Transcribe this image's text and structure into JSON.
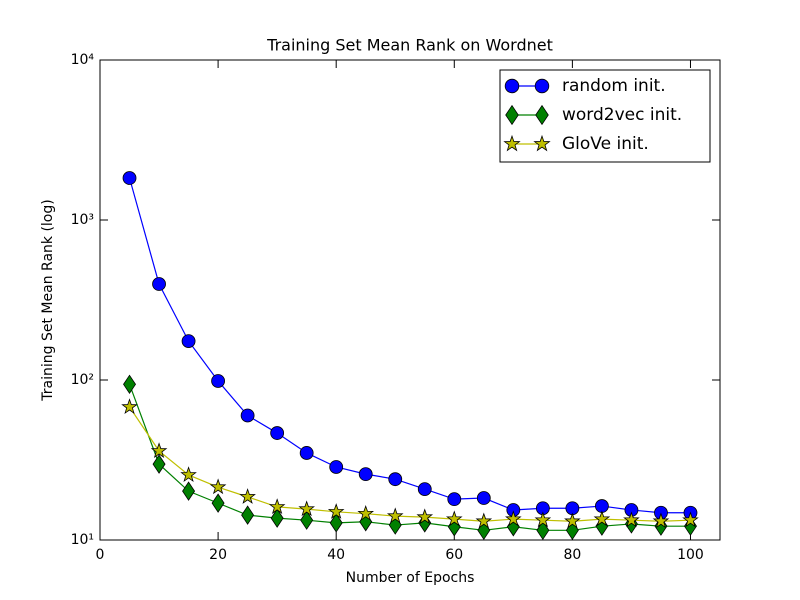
{
  "chart_data": {
    "type": "line",
    "title": "Training Set Mean Rank on Wordnet",
    "xlabel": "Number of Epochs",
    "ylabel": "Training Set Mean Rank (log)",
    "x": [
      5,
      10,
      15,
      20,
      25,
      30,
      35,
      40,
      45,
      50,
      55,
      60,
      65,
      70,
      75,
      80,
      85,
      90,
      95,
      100
    ],
    "series": [
      {
        "name": "random init.",
        "color": "#0000ff",
        "marker": "circle",
        "values": [
          1830,
          398,
          175,
          98.6,
          60,
          46.6,
          35,
          28.6,
          25.8,
          24,
          20.8,
          18,
          18.3,
          15.4,
          15.8,
          15.8,
          16.3,
          15.4,
          14.8,
          14.8
        ]
      },
      {
        "name": "word2vec init.",
        "color": "#008000",
        "marker": "diamond",
        "values": [
          94,
          29.8,
          20.2,
          17,
          14.3,
          13.7,
          13.3,
          12.8,
          13,
          12.4,
          12.8,
          12.1,
          11.5,
          12.1,
          11.5,
          11.5,
          12.2,
          12.6,
          12.2,
          12.2
        ]
      },
      {
        "name": "GloVe init.",
        "color": "#bfbf00",
        "marker": "star",
        "values": [
          67.8,
          36,
          25.5,
          21.4,
          18.6,
          16.1,
          15.6,
          15,
          14.6,
          14.1,
          13.9,
          13.5,
          13.1,
          13.5,
          13.3,
          13.1,
          13.5,
          13.3,
          13.1,
          13.3
        ]
      }
    ],
    "xlim": [
      0,
      105
    ],
    "xticks": [
      0,
      20,
      40,
      60,
      80,
      100
    ],
    "ylim": [
      10,
      10000
    ],
    "yscale": "log",
    "yticks": [
      {
        "value": 10,
        "label": "10¹"
      },
      {
        "value": 100,
        "label": "10²"
      },
      {
        "value": 1000,
        "label": "10³"
      },
      {
        "value": 10000,
        "label": "10⁴"
      }
    ],
    "legend": "upper right"
  }
}
